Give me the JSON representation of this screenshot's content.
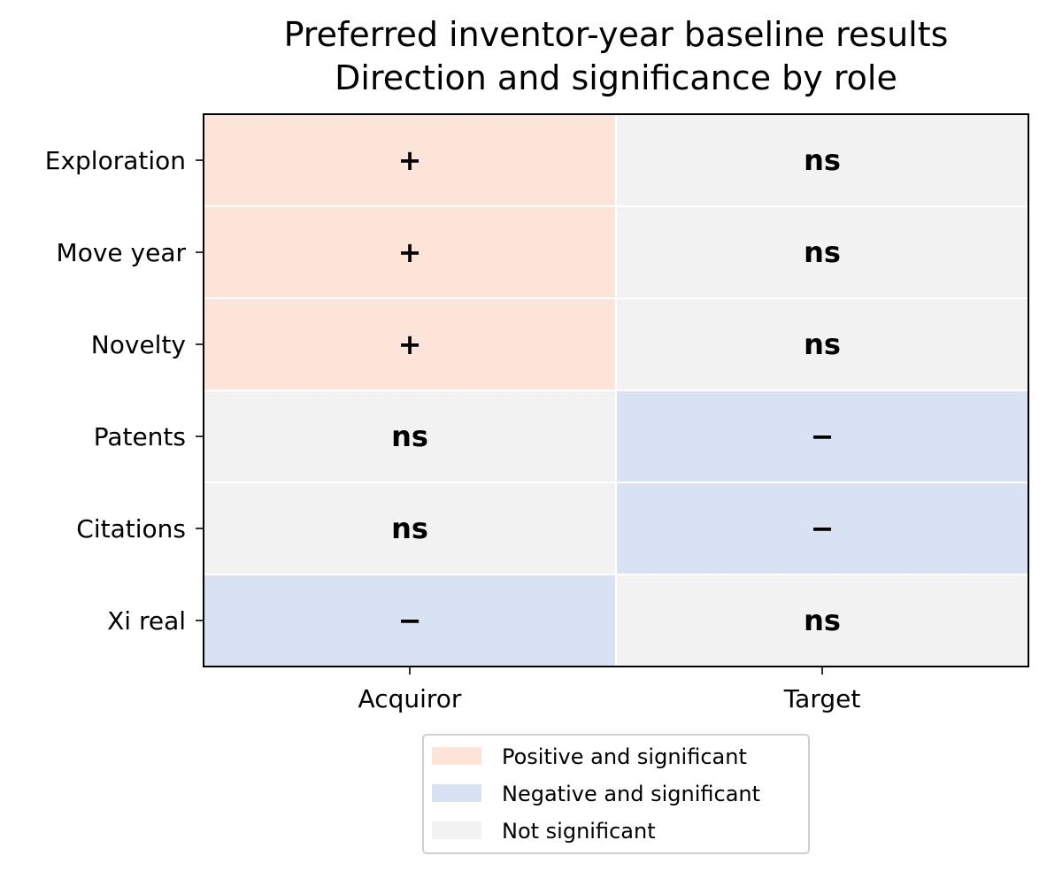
{
  "chart_data": {
    "type": "heatmap",
    "title_lines": [
      "Preferred inventor-year baseline results",
      "Direction and significance by role"
    ],
    "columns": [
      "Acquiror",
      "Target"
    ],
    "rows": [
      "Exploration",
      "Move year",
      "Novelty",
      "Patents",
      "Citations",
      "Xi real"
    ],
    "cells": [
      [
        "+",
        "ns"
      ],
      [
        "+",
        "ns"
      ],
      [
        "+",
        "ns"
      ],
      [
        "ns",
        "−"
      ],
      [
        "ns",
        "−"
      ],
      [
        "−",
        "ns"
      ]
    ],
    "categories": {
      "+": "positive",
      "−": "negative",
      "ns": "not_significant"
    },
    "colors": {
      "positive": "#fde4d8",
      "negative": "#d9e2f3",
      "not_significant": "#f2f2f2",
      "cell_border": "#ffffff",
      "axes_border": "#000000"
    },
    "legend": {
      "placement": "bottom-center",
      "entries": [
        {
          "key": "positive",
          "label": "Positive and significant"
        },
        {
          "key": "negative",
          "label": "Negative and significant"
        },
        {
          "key": "not_significant",
          "label": "Not significant"
        }
      ]
    }
  }
}
